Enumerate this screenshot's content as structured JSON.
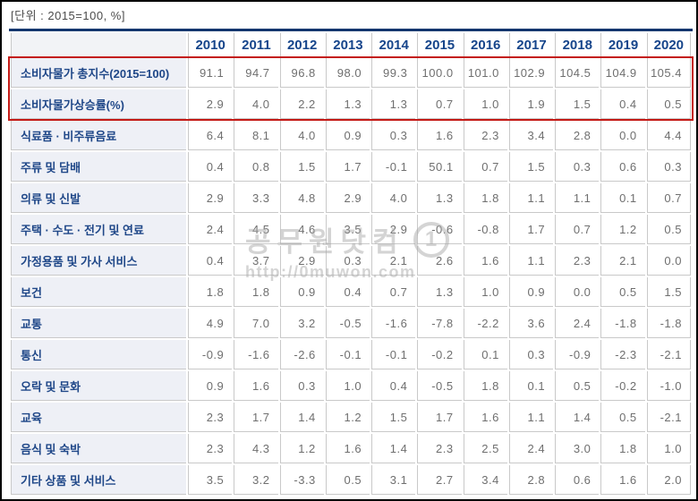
{
  "meta": {
    "unit_label": "[단위 : 2015=100, %]"
  },
  "chart_data": {
    "type": "table",
    "title": "소비자물가 동향 (2015=100, %)",
    "header_corner": "",
    "categories": [
      "2010",
      "2011",
      "2012",
      "2013",
      "2014",
      "2015",
      "2016",
      "2017",
      "2018",
      "2019",
      "2020"
    ],
    "series": [
      {
        "name": "소비자물가 총지수(2015=100)",
        "highlight": true,
        "values": [
          "91.1",
          "94.7",
          "96.8",
          "98.0",
          "99.3",
          "100.0",
          "101.0",
          "102.9",
          "104.5",
          "104.9",
          "105.4"
        ]
      },
      {
        "name": "소비자물가상승률(%)",
        "highlight": true,
        "values": [
          "2.9",
          "4.0",
          "2.2",
          "1.3",
          "1.3",
          "0.7",
          "1.0",
          "1.9",
          "1.5",
          "0.4",
          "0.5"
        ]
      },
      {
        "name": "식료품 · 비주류음료",
        "highlight": false,
        "values": [
          "6.4",
          "8.1",
          "4.0",
          "0.9",
          "0.3",
          "1.6",
          "2.3",
          "3.4",
          "2.8",
          "0.0",
          "4.4"
        ]
      },
      {
        "name": "주류 및 담배",
        "highlight": false,
        "values": [
          "0.4",
          "0.8",
          "1.5",
          "1.7",
          "-0.1",
          "50.1",
          "0.7",
          "1.5",
          "0.3",
          "0.6",
          "0.3"
        ]
      },
      {
        "name": "의류 및 신발",
        "highlight": false,
        "values": [
          "2.9",
          "3.3",
          "4.8",
          "2.9",
          "4.0",
          "1.3",
          "1.8",
          "1.1",
          "1.1",
          "0.1",
          "0.7"
        ]
      },
      {
        "name": "주택 · 수도 · 전기 및 연료",
        "highlight": false,
        "values": [
          "2.4",
          "4.5",
          "4.6",
          "3.5",
          "2.9",
          "-0.6",
          "-0.8",
          "1.7",
          "0.7",
          "1.2",
          "0.5"
        ]
      },
      {
        "name": "가정용품 및 가사 서비스",
        "highlight": false,
        "values": [
          "0.4",
          "3.7",
          "2.9",
          "0.3",
          "2.1",
          "2.6",
          "1.6",
          "1.1",
          "2.3",
          "2.1",
          "0.0"
        ]
      },
      {
        "name": "보건",
        "highlight": false,
        "values": [
          "1.8",
          "1.8",
          "0.9",
          "0.4",
          "0.7",
          "1.3",
          "1.0",
          "0.9",
          "0.0",
          "0.5",
          "1.5"
        ]
      },
      {
        "name": "교통",
        "highlight": false,
        "values": [
          "4.9",
          "7.0",
          "3.2",
          "-0.5",
          "-1.6",
          "-7.8",
          "-2.2",
          "3.6",
          "2.4",
          "-1.8",
          "-1.8"
        ]
      },
      {
        "name": "통신",
        "highlight": false,
        "values": [
          "-0.9",
          "-1.6",
          "-2.6",
          "-0.1",
          "-0.1",
          "-0.2",
          "0.1",
          "0.3",
          "-0.9",
          "-2.3",
          "-2.1"
        ]
      },
      {
        "name": "오락 및 문화",
        "highlight": false,
        "values": [
          "0.9",
          "1.6",
          "0.3",
          "1.0",
          "0.4",
          "-0.5",
          "1.8",
          "0.1",
          "0.5",
          "-0.2",
          "-1.0"
        ]
      },
      {
        "name": "교육",
        "highlight": false,
        "values": [
          "2.3",
          "1.7",
          "1.4",
          "1.2",
          "1.5",
          "1.7",
          "1.6",
          "1.1",
          "1.4",
          "0.5",
          "-2.1"
        ]
      },
      {
        "name": "음식 및 숙박",
        "highlight": false,
        "values": [
          "2.3",
          "4.3",
          "1.2",
          "1.6",
          "1.4",
          "2.3",
          "2.5",
          "2.4",
          "3.0",
          "1.8",
          "1.0"
        ]
      },
      {
        "name": "기타 상품 및 서비스",
        "highlight": false,
        "values": [
          "3.5",
          "3.2",
          "-3.3",
          "0.5",
          "3.1",
          "2.7",
          "3.4",
          "2.8",
          "0.6",
          "1.6",
          "2.0"
        ]
      }
    ],
    "layout_hints": {
      "highlight_note": "first two rows outlined with red rectangle",
      "grid": true,
      "values_align": "right"
    }
  },
  "watermark": {
    "site_name": "공무원닷컴",
    "url": "http://0muwon.com",
    "logo_glyph": "1"
  },
  "colors": {
    "accent_navy": "#16458b",
    "table_top_border": "#14366e",
    "highlight_red": "#c41a16",
    "label_bg": "#eef0f6",
    "grid_line": "#c9c9c9",
    "value_text": "#6f6f6f",
    "title_text": "#4b4b4b"
  }
}
